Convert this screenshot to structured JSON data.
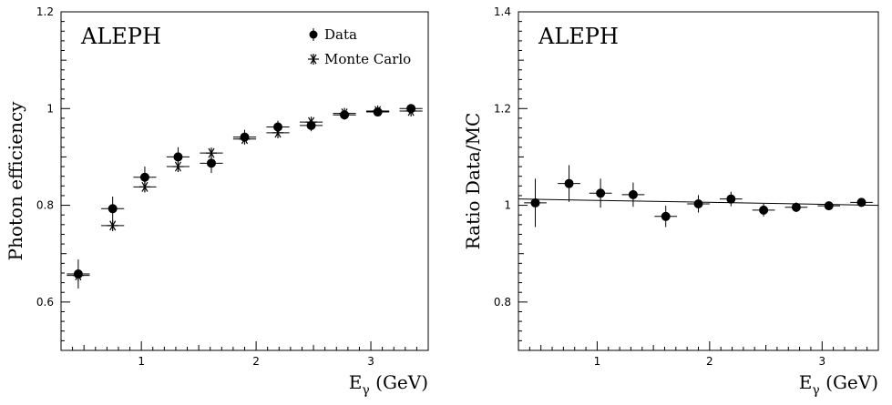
{
  "chart_data": [
    {
      "type": "scatter",
      "experiment_label": "ALEPH",
      "xlabel_main": "E",
      "xlabel_sub": "γ",
      "xlabel_unit": " (GeV)",
      "ylabel": "Photon efficiency",
      "xlim": [
        0.3,
        3.5
      ],
      "ylim": [
        0.5,
        1.2
      ],
      "x_ticks": [
        {
          "v": 1,
          "label": "1"
        },
        {
          "v": 2,
          "label": "2"
        },
        {
          "v": 3,
          "label": "3"
        }
      ],
      "y_ticks": [
        {
          "v": 0.6,
          "label": "0.6"
        },
        {
          "v": 0.8,
          "label": "0.8"
        },
        {
          "v": 1.0,
          "label": "1"
        },
        {
          "v": 1.2,
          "label": "1.2"
        }
      ],
      "legend": [
        {
          "name": "Data",
          "marker": "dot"
        },
        {
          "name": "Monte Carlo",
          "marker": "star"
        }
      ],
      "series": [
        {
          "name": "Data",
          "marker": "dot",
          "points": [
            {
              "x": 0.45,
              "y": 0.658,
              "xerr": 0.1,
              "yerr": 0.03
            },
            {
              "x": 0.75,
              "y": 0.793,
              "xerr": 0.1,
              "yerr": 0.025
            },
            {
              "x": 1.03,
              "y": 0.858,
              "xerr": 0.1,
              "yerr": 0.022
            },
            {
              "x": 1.32,
              "y": 0.9,
              "xerr": 0.1,
              "yerr": 0.02
            },
            {
              "x": 1.61,
              "y": 0.887,
              "xerr": 0.1,
              "yerr": 0.02
            },
            {
              "x": 1.9,
              "y": 0.941,
              "xerr": 0.1,
              "yerr": 0.015
            },
            {
              "x": 2.19,
              "y": 0.962,
              "xerr": 0.1,
              "yerr": 0.013
            },
            {
              "x": 2.48,
              "y": 0.965,
              "xerr": 0.1,
              "yerr": 0.012
            },
            {
              "x": 2.77,
              "y": 0.987,
              "xerr": 0.1,
              "yerr": 0.01
            },
            {
              "x": 3.06,
              "y": 0.993,
              "xerr": 0.1,
              "yerr": 0.008
            },
            {
              "x": 3.35,
              "y": 1.0,
              "xerr": 0.1,
              "yerr": 0.008
            }
          ]
        },
        {
          "name": "Monte Carlo",
          "marker": "star",
          "points": [
            {
              "x": 0.45,
              "y": 0.655,
              "xerr": 0.1,
              "yerr": 0
            },
            {
              "x": 0.75,
              "y": 0.758,
              "xerr": 0.1,
              "yerr": 0
            },
            {
              "x": 1.03,
              "y": 0.838,
              "xerr": 0.1,
              "yerr": 0
            },
            {
              "x": 1.32,
              "y": 0.88,
              "xerr": 0.1,
              "yerr": 0
            },
            {
              "x": 1.61,
              "y": 0.908,
              "xerr": 0.1,
              "yerr": 0
            },
            {
              "x": 1.9,
              "y": 0.937,
              "xerr": 0.1,
              "yerr": 0
            },
            {
              "x": 2.19,
              "y": 0.95,
              "xerr": 0.1,
              "yerr": 0
            },
            {
              "x": 2.48,
              "y": 0.972,
              "xerr": 0.1,
              "yerr": 0
            },
            {
              "x": 2.77,
              "y": 0.99,
              "xerr": 0.1,
              "yerr": 0
            },
            {
              "x": 3.06,
              "y": 0.995,
              "xerr": 0.1,
              "yerr": 0
            },
            {
              "x": 3.35,
              "y": 0.995,
              "xerr": 0.1,
              "yerr": 0
            }
          ]
        }
      ]
    },
    {
      "type": "scatter",
      "experiment_label": "ALEPH",
      "xlabel_main": "E",
      "xlabel_sub": "γ",
      "xlabel_unit": " (GeV)",
      "ylabel": "Ratio Data/MC",
      "xlim": [
        0.3,
        3.5
      ],
      "ylim": [
        0.7,
        1.4
      ],
      "x_ticks": [
        {
          "v": 1,
          "label": "1"
        },
        {
          "v": 2,
          "label": "2"
        },
        {
          "v": 3,
          "label": "3"
        }
      ],
      "y_ticks": [
        {
          "v": 0.8,
          "label": "0.8"
        },
        {
          "v": 1.0,
          "label": "1"
        },
        {
          "v": 1.2,
          "label": "1.2"
        },
        {
          "v": 1.4,
          "label": "1.4"
        }
      ],
      "legend": [],
      "fit_line": {
        "x": [
          0.3,
          3.5
        ],
        "y": [
          1.013,
          1.0
        ]
      },
      "series": [
        {
          "name": "",
          "marker": "dot",
          "points": [
            {
              "x": 0.45,
              "y": 1.005,
              "xerr": 0.1,
              "yerr": 0.05
            },
            {
              "x": 0.75,
              "y": 1.045,
              "xerr": 0.1,
              "yerr": 0.038
            },
            {
              "x": 1.03,
              "y": 1.025,
              "xerr": 0.1,
              "yerr": 0.03
            },
            {
              "x": 1.32,
              "y": 1.022,
              "xerr": 0.1,
              "yerr": 0.025
            },
            {
              "x": 1.61,
              "y": 0.977,
              "xerr": 0.1,
              "yerr": 0.022
            },
            {
              "x": 1.9,
              "y": 1.003,
              "xerr": 0.1,
              "yerr": 0.018
            },
            {
              "x": 2.19,
              "y": 1.013,
              "xerr": 0.1,
              "yerr": 0.015
            },
            {
              "x": 2.48,
              "y": 0.99,
              "xerr": 0.1,
              "yerr": 0.013
            },
            {
              "x": 2.77,
              "y": 0.996,
              "xerr": 0.1,
              "yerr": 0.01
            },
            {
              "x": 3.06,
              "y": 0.999,
              "xerr": 0.1,
              "yerr": 0.008
            },
            {
              "x": 3.35,
              "y": 1.006,
              "xerr": 0.1,
              "yerr": 0.008
            }
          ]
        }
      ]
    }
  ]
}
